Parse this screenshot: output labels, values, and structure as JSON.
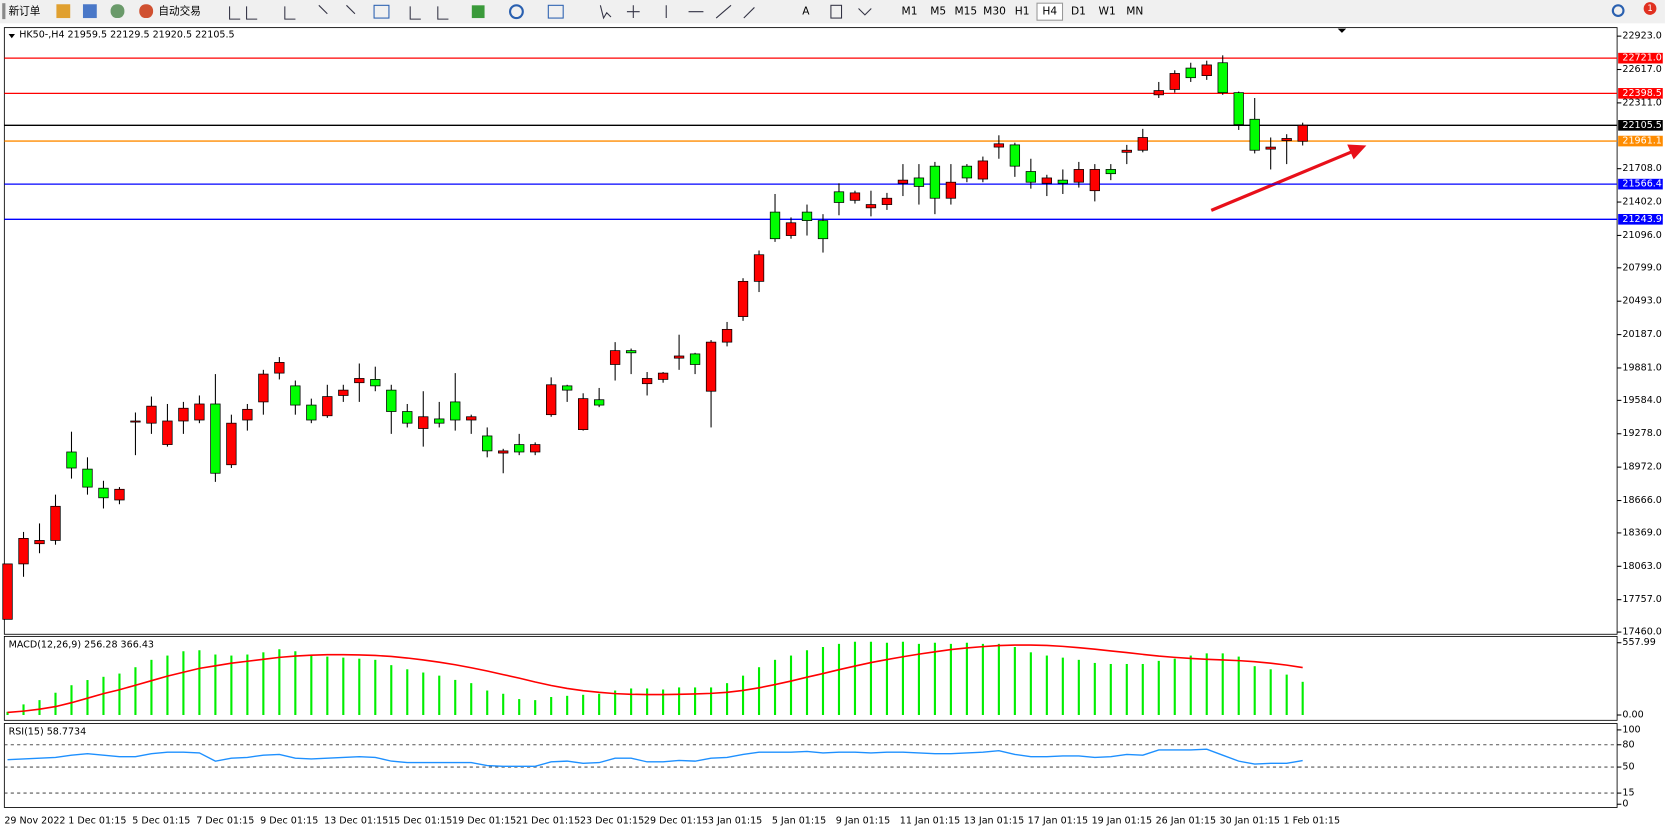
{
  "toolbar": {
    "new_order": "新订单",
    "auto_trading": "自动交易",
    "text_tool": "A",
    "timeframes": [
      "M1",
      "M5",
      "M15",
      "M30",
      "H1",
      "H4",
      "D1",
      "W1",
      "MN"
    ],
    "active_timeframe": "H4",
    "notifications": 1
  },
  "chart_data": [
    {
      "type": "candlestick",
      "title": "HK50-,H4  21959.5 22129.5 21920.5 22105.5",
      "categories": [
        "29 Nov 2022",
        null,
        null,
        null,
        "1 Dec 01:15",
        null,
        null,
        null,
        "5 Dec 01:15",
        null,
        null,
        null,
        "7 Dec 01:15",
        null,
        null,
        null,
        "9 Dec 01:15",
        null,
        null,
        null,
        "13 Dec 01:15",
        null,
        null,
        null,
        "15 Dec 01:15",
        null,
        null,
        null,
        "19 Dec 01:15",
        null,
        null,
        null,
        "21 Dec 01:15",
        null,
        null,
        null,
        "23 Dec 01:15",
        null,
        null,
        null,
        "29 Dec 01:15",
        null,
        null,
        null,
        "3 Jan 01:15",
        null,
        null,
        null,
        "5 Jan 01:15",
        null,
        null,
        null,
        "9 Jan 01:15",
        null,
        null,
        null,
        "11 Jan 01:15",
        null,
        null,
        null,
        "13 Jan 01:15",
        null,
        null,
        null,
        "17 Jan 01:15",
        null,
        null,
        null,
        "19 Jan 01:15",
        null,
        null,
        null,
        "26 Jan 01:15",
        null,
        null,
        null,
        "30 Jan 01:15",
        null,
        null,
        null,
        "1 Feb 01:15",
        null
      ],
      "open": [
        17577,
        18085,
        18270,
        18300,
        19111,
        18954,
        18779,
        18671,
        19385,
        19375,
        19179,
        19395,
        19404,
        19551,
        18994,
        19404,
        19570,
        19834,
        19717,
        19541,
        19443,
        19629,
        19746,
        19776,
        19678,
        19482,
        19326,
        19414,
        19570,
        19404,
        19258,
        19101,
        19179,
        19111,
        19453,
        19717,
        19316,
        19590,
        19913,
        20040,
        19737,
        19776,
        19971,
        20010,
        19668,
        20118,
        20352,
        20675,
        21310,
        21095,
        21310,
        21232,
        21496,
        21418,
        21349,
        21379,
        21574,
        21623,
        21731,
        21437,
        21731,
        21613,
        21906,
        21926,
        21682,
        21574,
        21603,
        21584,
        21506,
        21701,
        21858,
        21877,
        22385,
        22434,
        22630,
        22561,
        22679,
        22405,
        22161,
        21887,
        21965,
        21959.5
      ],
      "high": [
        18085,
        18378,
        18456,
        18720,
        19297,
        19062,
        18847,
        18789,
        19473,
        19619,
        19551,
        19570,
        19629,
        19825,
        19453,
        19551,
        19864,
        19981,
        19766,
        19600,
        19727,
        19727,
        19922,
        19893,
        19727,
        19551,
        19668,
        19570,
        19834,
        19453,
        19336,
        19140,
        19277,
        19199,
        19795,
        19727,
        19649,
        19698,
        20118,
        20059,
        19844,
        19844,
        20186,
        20020,
        20137,
        20303,
        20704,
        20958,
        21476,
        21261,
        21379,
        21291,
        21574,
        21506,
        21506,
        21486,
        21750,
        21750,
        21770,
        21750,
        21750,
        21819,
        22014,
        21946,
        21799,
        21652,
        21701,
        21770,
        21750,
        21750,
        21926,
        22073,
        22503,
        22610,
        22679,
        22698,
        22747,
        22415,
        22356,
        21994,
        22024,
        22129.5
      ],
      "low": [
        17577,
        17967,
        18183,
        18261,
        18867,
        18720,
        18593,
        18632,
        19082,
        19277,
        19160,
        19277,
        19375,
        18837,
        18964,
        19307,
        19453,
        19776,
        19453,
        19375,
        19424,
        19570,
        19570,
        19668,
        19277,
        19336,
        19160,
        19336,
        19307,
        19277,
        19062,
        18916,
        19082,
        19082,
        19434,
        19570,
        19307,
        19522,
        19766,
        19825,
        19629,
        19746,
        19864,
        19825,
        19336,
        20079,
        20313,
        20577,
        21037,
        21066,
        21095,
        20939,
        21281,
        21388,
        21271,
        21330,
        21457,
        21379,
        21291,
        21379,
        21584,
        21584,
        21799,
        21633,
        21525,
        21457,
        21476,
        21535,
        21408,
        21603,
        21750,
        21858,
        22356,
        22405,
        22503,
        22522,
        22385,
        22063,
        21848,
        21701,
        21750,
        21920.5
      ],
      "close": [
        18085,
        18319,
        18300,
        18613,
        18964,
        18789,
        18691,
        18769,
        19395,
        19531,
        19395,
        19512,
        19551,
        18916,
        19375,
        19502,
        19825,
        19932,
        19541,
        19404,
        19619,
        19678,
        19785,
        19717,
        19482,
        19375,
        19434,
        19375,
        19404,
        19434,
        19121,
        19121,
        19111,
        19179,
        19727,
        19678,
        19600,
        19541,
        20040,
        20020,
        19785,
        19834,
        19991,
        19913,
        20118,
        20235,
        20675,
        20919,
        21066,
        21212,
        21232,
        21066,
        21398,
        21486,
        21379,
        21437,
        21603,
        21545,
        21437,
        21584,
        21623,
        21779,
        21936,
        21731,
        21584,
        21623,
        21574,
        21701,
        21701,
        21662,
        21877,
        21994,
        22424,
        22581,
        22542,
        22659,
        22405,
        22112,
        21877,
        21906,
        21985,
        22105.5
      ],
      "up_color": "#ff0000",
      "down_color": "#00ff00",
      "ylim": [
        17440,
        23001
      ],
      "yticks": [
        {
          "value": 22923,
          "label": "22923.0"
        },
        {
          "value": 22617,
          "label": "22617.0"
        },
        {
          "value": 22311,
          "label": "22311.0"
        },
        {
          "value": 21708,
          "label": "21708.0"
        },
        {
          "value": 21402,
          "label": "21402.0"
        },
        {
          "value": 21096,
          "label": "21096.0"
        },
        {
          "value": 20799,
          "label": "20799.0"
        },
        {
          "value": 20493,
          "label": "20493.0"
        },
        {
          "value": 20187,
          "label": "20187.0"
        },
        {
          "value": 19881,
          "label": "19881.0"
        },
        {
          "value": 19584,
          "label": "19584.0"
        },
        {
          "value": 19278,
          "label": "19278.0"
        },
        {
          "value": 18972,
          "label": "18972.0"
        },
        {
          "value": 18666,
          "label": "18666.0"
        },
        {
          "value": 18369,
          "label": "18369.0"
        },
        {
          "value": 18063,
          "label": "18063.0"
        },
        {
          "value": 17757,
          "label": "17757.0"
        },
        {
          "value": 17460,
          "label": "17460.0"
        }
      ],
      "levels": [
        {
          "value": 22721,
          "label": "22721.0",
          "color": "#ff0000"
        },
        {
          "value": 22398.5,
          "label": "22398.5",
          "color": "#ff0000"
        },
        {
          "value": 22105.5,
          "label": "22105.5",
          "color": "#000000"
        },
        {
          "value": 21961.1,
          "label": "21961.1",
          "color": "#ff8c00"
        },
        {
          "value": 21566.4,
          "label": "21566.4",
          "color": "#0000ff"
        },
        {
          "value": 21243.9,
          "label": "21243.9",
          "color": "#0000ff"
        }
      ]
    },
    {
      "type": "macd",
      "title": "MACD(12,26,9) 256.28 366.43",
      "histogram": {
        "color": "#00ee00",
        "values": [
          25,
          82,
          115,
          172,
          230,
          270,
          295,
          320,
          369,
          426,
          459,
          492,
          500,
          467,
          459,
          467,
          484,
          508,
          492,
          459,
          451,
          443,
          435,
          426,
          385,
          353,
          328,
          304,
          271,
          246,
          189,
          164,
          123,
          115,
          139,
          148,
          156,
          164,
          189,
          205,
          205,
          197,
          213,
          213,
          213,
          246,
          304,
          369,
          426,
          459,
          500,
          525,
          549,
          566,
          566,
          558,
          566,
          549,
          558,
          549,
          558,
          549,
          549,
          525,
          484,
          459,
          443,
          426,
          402,
          394,
          394,
          394,
          418,
          435,
          459,
          476,
          476,
          451,
          377,
          353,
          312,
          256.28
        ]
      },
      "signal": {
        "color": "#ff0000",
        "values": [
          20,
          30,
          45,
          65,
          95,
          130,
          165,
          195,
          230,
          265,
          300,
          330,
          360,
          380,
          400,
          415,
          430,
          445,
          455,
          462,
          466,
          466,
          464,
          460,
          452,
          440,
          425,
          408,
          388,
          365,
          340,
          312,
          285,
          255,
          228,
          205,
          188,
          175,
          165,
          160,
          158,
          158,
          160,
          163,
          167,
          175,
          190,
          210,
          235,
          262,
          292,
          320,
          350,
          378,
          405,
          428,
          450,
          470,
          488,
          505,
          518,
          528,
          536,
          540,
          540,
          537,
          530,
          520,
          508,
          495,
          482,
          468,
          455,
          445,
          437,
          430,
          425,
          420,
          412,
          400,
          385,
          366.43
        ]
      },
      "ylim": [
        -41,
        607
      ],
      "yticks": [
        {
          "value": 557.99,
          "label": "557.99"
        },
        {
          "value": 0,
          "label": "0.00"
        }
      ]
    },
    {
      "type": "line",
      "title": "RSI(15) 58.7734",
      "color": "#1e90ff",
      "values": [
        60,
        61,
        62,
        63,
        66,
        68,
        66,
        64,
        64,
        68,
        70,
        70,
        69,
        58,
        62,
        63,
        66,
        67,
        62,
        61,
        62,
        63,
        64,
        63,
        58,
        56,
        56,
        56,
        56,
        56,
        52,
        51,
        51,
        51,
        57,
        58,
        55,
        56,
        62,
        62,
        57,
        57,
        59,
        58,
        62,
        63,
        67,
        70,
        70,
        70,
        71,
        69,
        70,
        70,
        69,
        70,
        70,
        69,
        68,
        68,
        69,
        70,
        72,
        67,
        64,
        64,
        65,
        65,
        63,
        64,
        67,
        66,
        73,
        73,
        73,
        74,
        66,
        58,
        54,
        55,
        55,
        58.7734
      ],
      "ylim": [
        -4.3,
        108.6
      ],
      "yticks": [
        100,
        80,
        50,
        15,
        0
      ],
      "levels": [
        80,
        50,
        15
      ]
    }
  ]
}
